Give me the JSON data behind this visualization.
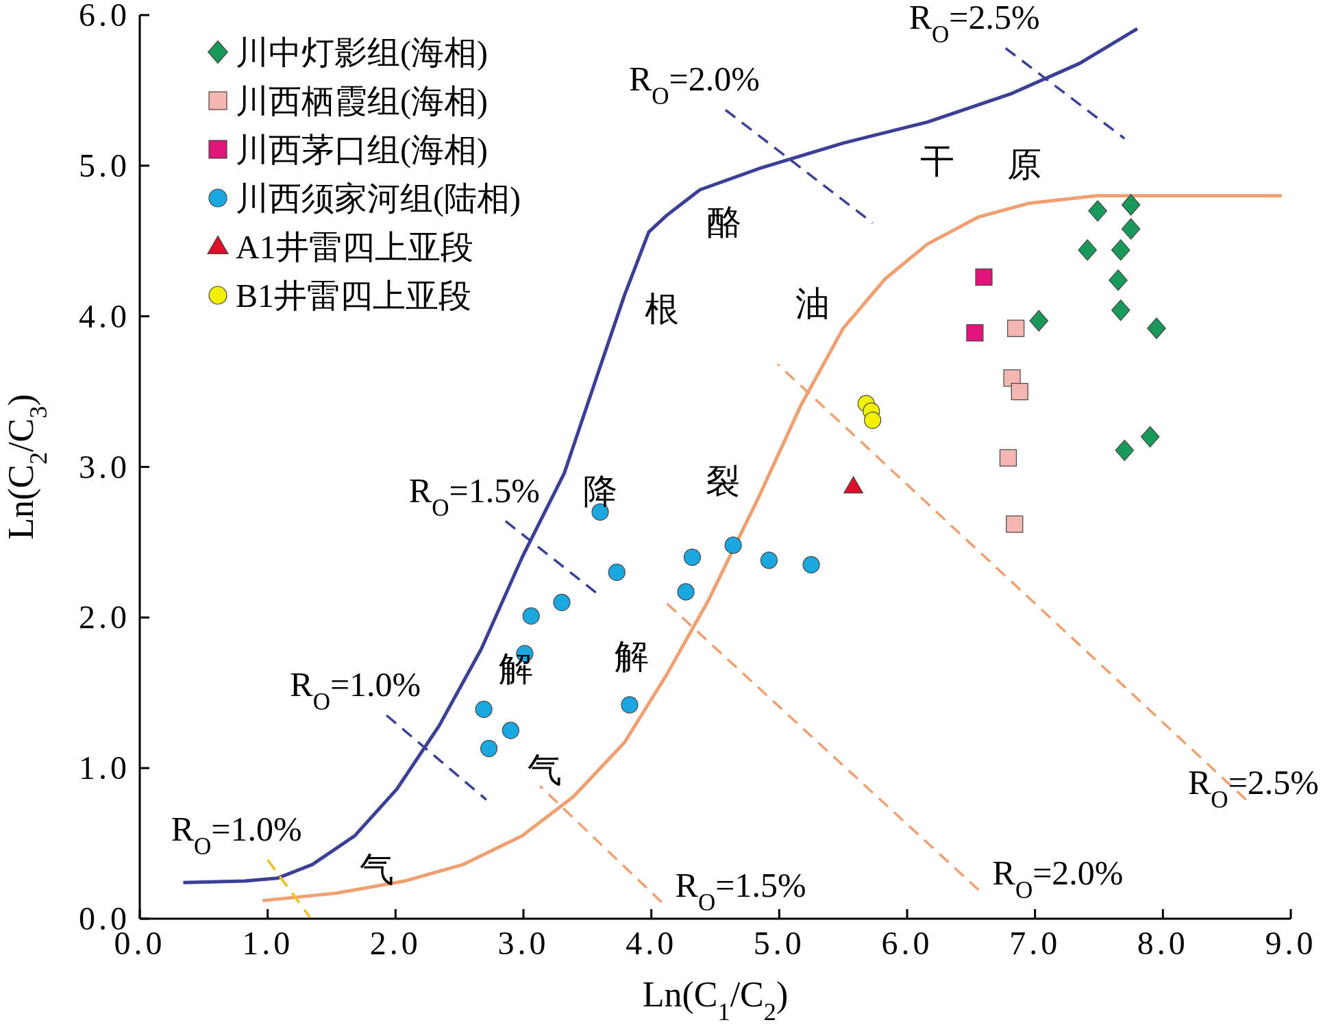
{
  "chart_data": {
    "type": "scatter",
    "xlabel": "Ln(C$_{1}$/C$_{2}$)",
    "ylabel": "Ln(C$_{2}$/C$_{3}$)",
    "xlim": [
      0,
      9
    ],
    "ylim": [
      0,
      6
    ],
    "xticks": [
      {
        "value": 0,
        "label": "0.0"
      },
      {
        "value": 1,
        "label": "1.0"
      },
      {
        "value": 2,
        "label": "2.0"
      },
      {
        "value": 3,
        "label": "3.0"
      },
      {
        "value": 4,
        "label": "4.0"
      },
      {
        "value": 5,
        "label": "5.0"
      },
      {
        "value": 6,
        "label": "6.0"
      },
      {
        "value": 7,
        "label": "7.0"
      },
      {
        "value": 8,
        "label": "8.0"
      },
      {
        "value": 9,
        "label": "9.0"
      }
    ],
    "yticks": [
      {
        "value": 0,
        "label": "0.0"
      },
      {
        "value": 1,
        "label": "1.0"
      },
      {
        "value": 2,
        "label": "2.0"
      },
      {
        "value": 3,
        "label": "3.0"
      },
      {
        "value": 4,
        "label": "4.0"
      },
      {
        "value": 5,
        "label": "5.0"
      },
      {
        "value": 6,
        "label": "6.0"
      }
    ],
    "legend": "top left",
    "series": [
      {
        "type": "line",
        "color": "#3b3f96",
        "line_style": "solid",
        "x": [
          0.34,
          0.82,
          1.08,
          1.35,
          1.68,
          2.01,
          2.34,
          2.67,
          2.99,
          3.32,
          3.59,
          3.79,
          3.98,
          4.12,
          4.38,
          4.84,
          5.5,
          6.16,
          6.82,
          7.35,
          7.8
        ],
        "values": [
          0.24,
          0.25,
          0.27,
          0.36,
          0.55,
          0.86,
          1.28,
          1.79,
          2.4,
          2.96,
          3.64,
          4.14,
          4.56,
          4.67,
          4.84,
          4.98,
          5.15,
          5.29,
          5.48,
          5.68,
          5.91
        ]
      },
      {
        "type": "line",
        "color": "#f0a070",
        "line_style": "solid",
        "x": [
          8.93,
          8.14,
          7.48,
          6.95,
          6.56,
          6.16,
          5.83,
          5.5,
          5.17,
          4.84,
          4.45,
          4.12,
          3.79,
          3.39,
          2.99,
          2.53,
          2.07,
          1.54,
          0.96
        ],
        "values": [
          4.8,
          4.8,
          4.8,
          4.75,
          4.66,
          4.48,
          4.25,
          3.92,
          3.41,
          2.8,
          2.12,
          1.62,
          1.17,
          0.81,
          0.55,
          0.36,
          0.25,
          0.17,
          0.12
        ]
      },
      {
        "type": "line",
        "name": "R$_{O}$=1.0%",
        "color": "#3b3f96",
        "line_style": "dashed",
        "x": [
          1.93,
          2.71
        ],
        "values": [
          1.35,
          0.79
        ]
      },
      {
        "type": "line",
        "name": "R$_{O}$=1.5%",
        "color": "#3b3f96",
        "line_style": "dashed",
        "x": [
          2.86,
          3.59
        ],
        "values": [
          2.64,
          2.15
        ]
      },
      {
        "type": "line",
        "name": "R$_{O}$=2.0%",
        "color": "#3b3f96",
        "line_style": "dashed",
        "x": [
          4.58,
          5.73
        ],
        "values": [
          5.37,
          4.62
        ]
      },
      {
        "type": "line",
        "name": "R$_{O}$=2.5%",
        "color": "#3b3f96",
        "line_style": "dashed",
        "x": [
          6.77,
          7.7
        ],
        "values": [
          5.78,
          5.18
        ]
      },
      {
        "type": "line",
        "name": "R$_{O}$=1.0%",
        "color": "#f0c020",
        "line_style": "dashed",
        "x": [
          1.0,
          1.33
        ],
        "values": [
          0.39,
          0.01
        ]
      },
      {
        "type": "line",
        "name": "R$_{O}$=1.5%",
        "color": "#f0a070",
        "line_style": "dashed",
        "x": [
          4.08,
          3.13
        ],
        "values": [
          0.11,
          0.88
        ]
      },
      {
        "type": "line",
        "name": "R$_{O}$=2.0%",
        "color": "#f0a070",
        "line_style": "dashed",
        "x": [
          6.56,
          4.1
        ],
        "values": [
          0.19,
          2.11
        ]
      },
      {
        "type": "line",
        "name": "R$_{O}$=2.5%",
        "color": "#f0a070",
        "line_style": "dashed",
        "x": [
          8.65,
          4.99
        ],
        "values": [
          0.79,
          3.68
        ]
      },
      {
        "name": "川中灯影组(海相)",
        "color": "#1a9a5a",
        "marker": "diamond",
        "x": [
          7.49,
          7.75,
          7.75,
          7.41,
          7.67,
          7.65,
          7.67,
          7.03,
          7.95,
          7.9,
          7.7
        ],
        "values": [
          4.7,
          4.74,
          4.58,
          4.44,
          4.44,
          4.24,
          4.04,
          3.97,
          3.92,
          3.2,
          3.11
        ]
      },
      {
        "name": "川西栖霞组(海相)",
        "color": "#f4b6b0",
        "marker": "square",
        "x": [
          6.85,
          6.82,
          6.88,
          6.79,
          6.84
        ],
        "values": [
          3.92,
          3.59,
          3.5,
          3.06,
          2.62
        ]
      },
      {
        "name": "川西茅口组(海相)",
        "color": "#e0157a",
        "marker": "square",
        "x": [
          6.6,
          6.53
        ],
        "values": [
          4.26,
          3.89
        ]
      },
      {
        "name": "川西须家河组(陆相)",
        "color": "#1ba7e0",
        "marker": "circle",
        "x": [
          3.6,
          3.73,
          3.3,
          3.06,
          3.01,
          2.69,
          2.9,
          2.73,
          3.83,
          4.27,
          4.32,
          4.64,
          4.92,
          5.25
        ],
        "values": [
          2.7,
          2.3,
          2.1,
          2.01,
          1.76,
          1.39,
          1.25,
          1.13,
          1.42,
          2.17,
          2.4,
          2.48,
          2.38,
          2.35
        ]
      },
      {
        "name": "A1井雷四上亚段",
        "color": "#e0102a",
        "marker": "triangle",
        "x": [
          5.58
        ],
        "values": [
          2.87
        ]
      },
      {
        "name": "B1井雷四上亚段",
        "color": "#f0f000",
        "marker": "circle",
        "x": [
          5.68,
          5.72,
          5.73
        ],
        "values": [
          3.42,
          3.37,
          3.31
        ]
      }
    ],
    "annotations": [
      {
        "text": "干",
        "x": 6.16,
        "y": 5.29
      },
      {
        "text": "酪",
        "x": 4.38,
        "y": 4.84
      },
      {
        "text": "根",
        "x": 3.79,
        "y": 4.14
      },
      {
        "text": "降",
        "x": 3.32,
        "y": 2.96
      },
      {
        "text": "解",
        "x": 2.67,
        "y": 1.79
      },
      {
        "text": "气",
        "x": 1.68,
        "y": 0.55
      },
      {
        "text": "原",
        "x": 6.95,
        "y": 4.75
      },
      {
        "text": "油",
        "x": 5.5,
        "y": 3.92
      },
      {
        "text": "裂",
        "x": 4.84,
        "y": 2.8
      },
      {
        "text": "解",
        "x": 4.12,
        "y": 1.62
      },
      {
        "text": "气",
        "x": 3.39,
        "y": 0.81
      }
    ]
  }
}
